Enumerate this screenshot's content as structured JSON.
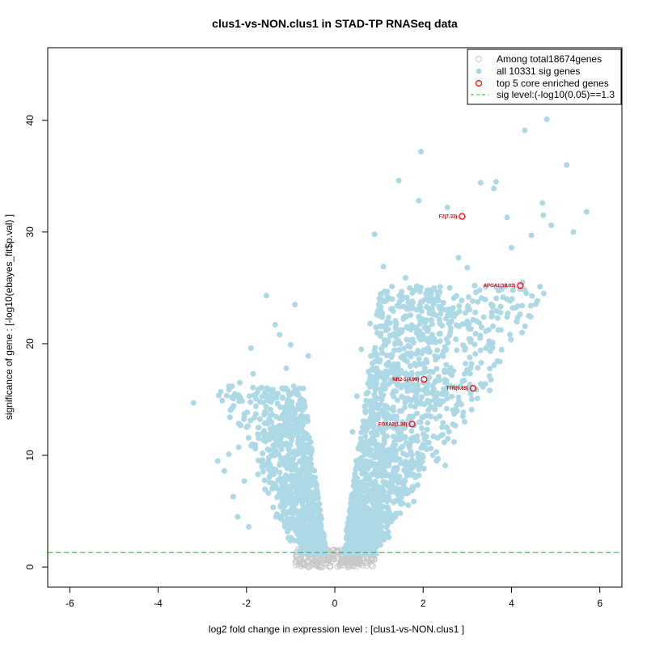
{
  "chart_data": {
    "type": "scatter",
    "title": "clus1-vs-NON.clus1 in STAD-TP RNASeq data",
    "xlabel": "log2 fold change in expression level : [clus1-vs-NON.clus1 ]",
    "ylabel": "significance of gene : [-log10(ebayes_fit$p.val) ]",
    "xlim": [
      -6.5,
      6.5
    ],
    "ylim": [
      -1.8,
      46.5
    ],
    "x_ticks": [
      -6,
      -4,
      -2,
      0,
      2,
      4,
      6
    ],
    "y_ticks": [
      0,
      10,
      20,
      30,
      40
    ],
    "grid": false,
    "legend_position": "top-right",
    "sig_level": 1.3,
    "colors": {
      "all_genes": "#c8c8c8",
      "sig_genes": "#add8e6",
      "core_genes": "#ff0000",
      "sig_line": "#00cc00",
      "gene_label": "#cc0000"
    },
    "legend": [
      {
        "label": "Among total18674genes",
        "marker": "open-circle-gray"
      },
      {
        "label": "all 10331 sig genes",
        "marker": "filled-circle-lightblue"
      },
      {
        "label": "top 5 core enriched genes",
        "marker": "open-circle-red"
      },
      {
        "label": "sig level:(-log10(0.05)==1.3",
        "marker": "dashed-line-green"
      }
    ],
    "core_genes": [
      {
        "label": "F2(7.33)",
        "x": 2.88,
        "y": 31.4
      },
      {
        "label": "APOA1(18.03)",
        "x": 4.2,
        "y": 25.2
      },
      {
        "label": "NR2-1(4.99)",
        "x": 2.02,
        "y": 16.8
      },
      {
        "label": "TTR(0.85)",
        "x": 3.13,
        "y": 16.0
      },
      {
        "label": "FOXA2(1.38)",
        "x": 1.75,
        "y": 12.8
      }
    ],
    "sig_points": [
      [
        -3.2,
        14.7
      ],
      [
        -2.65,
        9.5
      ],
      [
        -2.4,
        10.1
      ],
      [
        -2.15,
        16.5
      ],
      [
        -2.05,
        7.7
      ],
      [
        -1.9,
        19.6
      ],
      [
        -1.85,
        17.3
      ],
      [
        -1.8,
        10.6
      ],
      [
        -1.7,
        14.8
      ],
      [
        -1.55,
        24.3
      ],
      [
        -1.35,
        21.7
      ],
      [
        -1.25,
        20.8
      ],
      [
        -1.0,
        19.9
      ],
      [
        -0.9,
        23.5
      ],
      [
        -0.6,
        18.9
      ],
      [
        -2.2,
        4.5
      ],
      [
        -2.3,
        6.3
      ],
      [
        -1.6,
        12.2
      ],
      [
        -1.4,
        15.6
      ],
      [
        -1.1,
        17.8
      ],
      [
        -0.8,
        16.0
      ],
      [
        -0.7,
        13.2
      ],
      [
        -1.95,
        3.6
      ],
      [
        -2.5,
        8.6
      ],
      [
        -1.2,
        6.8
      ],
      [
        0.9,
        29.8
      ],
      [
        1.45,
        34.6
      ],
      [
        1.95,
        37.2
      ],
      [
        1.9,
        32.8
      ],
      [
        2.55,
        32.2
      ],
      [
        3.3,
        34.4
      ],
      [
        3.6,
        33.9
      ],
      [
        3.65,
        34.5
      ],
      [
        3.9,
        31.3
      ],
      [
        4.3,
        39.1
      ],
      [
        4.8,
        40.1
      ],
      [
        5.25,
        36.0
      ],
      [
        4.7,
        32.6
      ],
      [
        4.72,
        31.5
      ],
      [
        4.9,
        30.6
      ],
      [
        5.4,
        30.0
      ],
      [
        5.7,
        31.8
      ],
      [
        4.45,
        29.7
      ],
      [
        4.0,
        28.6
      ],
      [
        3.9,
        22.4
      ],
      [
        4.25,
        25.5
      ],
      [
        4.3,
        24.8
      ],
      [
        3.55,
        22.8
      ],
      [
        3.3,
        19.4
      ],
      [
        3.0,
        26.8
      ],
      [
        2.8,
        27.7
      ],
      [
        2.6,
        25.0
      ],
      [
        2.4,
        23.1
      ],
      [
        2.2,
        22.7
      ],
      [
        1.85,
        21.0
      ],
      [
        1.6,
        25.9
      ],
      [
        1.3,
        24.0
      ],
      [
        1.1,
        26.9
      ],
      [
        0.8,
        21.8
      ],
      [
        0.6,
        19.5
      ],
      [
        0.5,
        15.3
      ],
      [
        0.4,
        12.1
      ],
      [
        1.0,
        18.4
      ],
      [
        1.2,
        20.3
      ],
      [
        1.5,
        17.6
      ],
      [
        2.9,
        13.5
      ],
      [
        2.7,
        11.2
      ],
      [
        2.3,
        10.3
      ],
      [
        1.9,
        8.2
      ],
      [
        1.6,
        7.0
      ],
      [
        3.1,
        14.1
      ],
      [
        3.3,
        16.4
      ],
      [
        3.5,
        17.1
      ],
      [
        2.1,
        14.9
      ],
      [
        2.5,
        9.1
      ]
    ]
  }
}
